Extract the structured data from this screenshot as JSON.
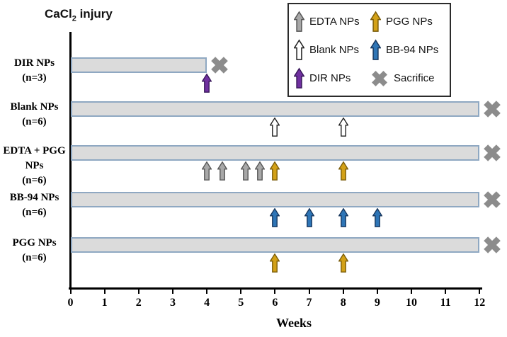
{
  "chart_data": {
    "type": "bar",
    "subtype": "experiment-timeline-gantt",
    "title": "CaCl2 injury",
    "title_parts": {
      "prefix": "CaCl",
      "sub": "2",
      "suffix": " injury"
    },
    "xlabel": "Weeks",
    "xlim": [
      0,
      12
    ],
    "xticks": [
      0,
      1,
      2,
      3,
      4,
      5,
      6,
      7,
      8,
      9,
      10,
      11,
      12
    ],
    "grid": false,
    "legend_position": "top-right",
    "groups": [
      {
        "label_lines": [
          "DIR NPs",
          "(n=3)"
        ],
        "bar_start": 0,
        "bar_end": 4,
        "sacrifice_week": 4,
        "injections": [
          {
            "type": "DIR NPs",
            "key": "dir",
            "weeks": [
              4
            ]
          }
        ]
      },
      {
        "label_lines": [
          "Blank NPs",
          "(n=6)"
        ],
        "bar_start": 0,
        "bar_end": 12,
        "sacrifice_week": 12,
        "injections": [
          {
            "type": "Blank NPs",
            "key": "blank",
            "weeks": [
              6,
              8
            ]
          }
        ]
      },
      {
        "label_lines": [
          "EDTA + PGG",
          "NPs",
          "(n=6)"
        ],
        "bar_start": 0,
        "bar_end": 12,
        "sacrifice_week": 12,
        "injections": [
          {
            "type": "EDTA NPs",
            "key": "edta",
            "weeks": [
              4,
              4.45,
              5.15,
              5.55
            ]
          },
          {
            "type": "PGG NPs",
            "key": "pgg",
            "weeks": [
              6,
              8
            ]
          }
        ]
      },
      {
        "label_lines": [
          "BB-94 NPs",
          "(n=6)"
        ],
        "bar_start": 0,
        "bar_end": 12,
        "sacrifice_week": 12,
        "injections": [
          {
            "type": "BB-94 NPs",
            "key": "bb94",
            "weeks": [
              6,
              7,
              8,
              9
            ]
          }
        ]
      },
      {
        "label_lines": [
          "PGG NPs",
          "(n=6)"
        ],
        "bar_start": 0,
        "bar_end": 12,
        "sacrifice_week": 12,
        "injections": [
          {
            "type": "PGG NPs",
            "key": "pgg",
            "weeks": [
              6,
              8
            ]
          }
        ]
      }
    ],
    "legend": [
      {
        "label": "EDTA NPs",
        "symbol": "arrow",
        "key": "edta"
      },
      {
        "label": "Blank NPs",
        "symbol": "arrow",
        "key": "blank"
      },
      {
        "label": "DIR NPs",
        "symbol": "arrow",
        "key": "dir"
      },
      {
        "label": "PGG NPs",
        "symbol": "arrow",
        "key": "pgg"
      },
      {
        "label": "BB-94 NPs",
        "symbol": "arrow",
        "key": "bb94"
      },
      {
        "label": "Sacrifice",
        "symbol": "cross",
        "key": "sacrifice"
      }
    ],
    "colors": {
      "bar_fill": "#DBDBDB",
      "bar_border": "#8FA8C2",
      "axis": "#000000",
      "sacrifice": "#8C8C8C"
    },
    "arrow_styles": {
      "edta": {
        "fill": "#A8A8A8",
        "stroke": "#565656"
      },
      "blank": {
        "fill": "#FFFFFF",
        "stroke": "#1F1F1F"
      },
      "dir": {
        "fill": "#7030A0",
        "stroke": "#38175A"
      },
      "pgg": {
        "fill": "#D3A117",
        "stroke": "#7A5C0A"
      },
      "bb94": {
        "fill": "#2E75B6",
        "stroke": "#17375E"
      }
    }
  }
}
